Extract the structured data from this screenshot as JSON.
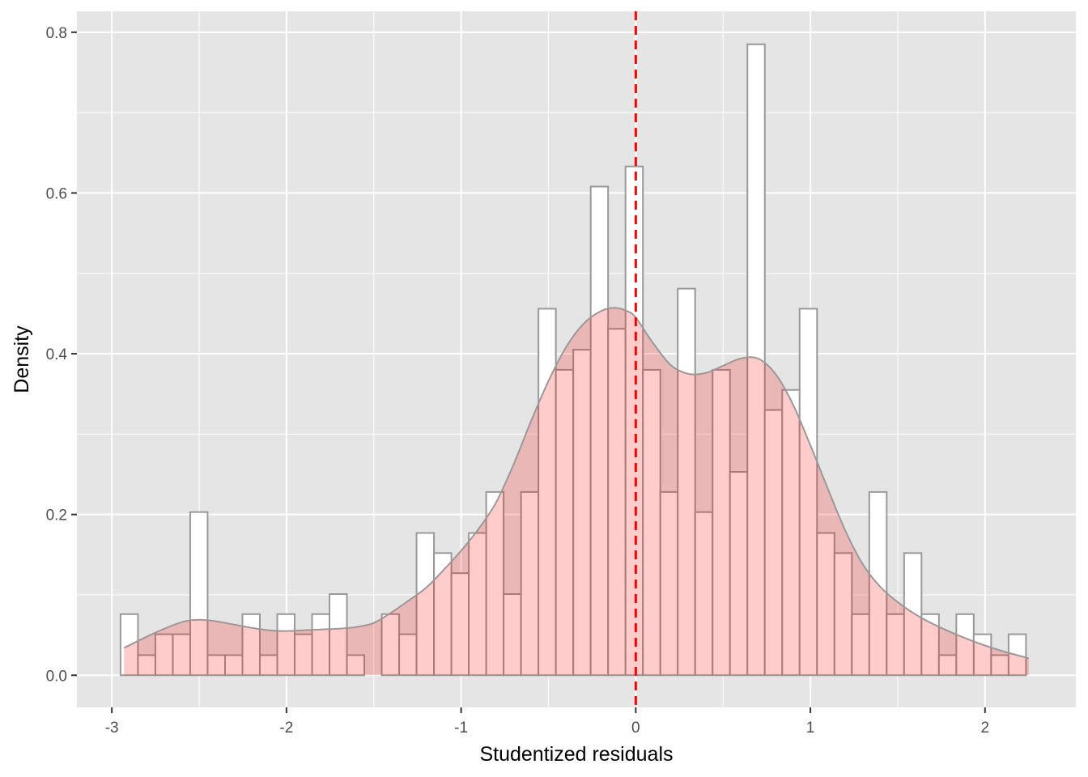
{
  "chart_data": {
    "type": "histogram",
    "title": "",
    "xlabel": "Studentized residuals",
    "ylabel": "Density",
    "xlim": [
      -3.2,
      2.52
    ],
    "ylim": [
      -0.04,
      0.826
    ],
    "x_ticks": [
      -3,
      -2,
      -1,
      0,
      1,
      2
    ],
    "y_ticks": [
      0.0,
      0.2,
      0.4,
      0.6,
      0.8
    ],
    "x_tick_labels": [
      "-3",
      "-2",
      "-1",
      "0",
      "1",
      "2"
    ],
    "y_tick_labels": [
      "0.0",
      "0.2",
      "0.4",
      "0.6",
      "0.8"
    ],
    "grid": true,
    "bin_start": -2.95,
    "bin_width": 0.0997,
    "histogram_density": [
      0.076,
      0.025,
      0.051,
      0.051,
      0.203,
      0.025,
      0.025,
      0.076,
      0.025,
      0.076,
      0.051,
      0.076,
      0.101,
      0.025,
      0.0,
      0.076,
      0.051,
      0.177,
      0.152,
      0.127,
      0.177,
      0.228,
      0.101,
      0.228,
      0.456,
      0.38,
      0.405,
      0.608,
      0.431,
      0.633,
      0.38,
      0.228,
      0.481,
      0.203,
      0.38,
      0.253,
      0.785,
      0.33,
      0.355,
      0.456,
      0.177,
      0.152,
      0.076,
      0.228,
      0.076,
      0.152,
      0.076,
      0.025,
      0.076,
      0.051,
      0.025,
      0.051
    ],
    "bar_fill": "#ffffff",
    "bar_outline": "#999999",
    "density_curve": {
      "x": [
        -2.93,
        -2.75,
        -2.6,
        -2.5,
        -2.4,
        -2.3,
        -2.2,
        -2.1,
        -2.0,
        -1.9,
        -1.8,
        -1.7,
        -1.6,
        -1.5,
        -1.4,
        -1.3,
        -1.2,
        -1.1,
        -1.0,
        -0.9,
        -0.8,
        -0.7,
        -0.6,
        -0.5,
        -0.4,
        -0.3,
        -0.2,
        -0.12,
        -0.05,
        0.0,
        0.1,
        0.2,
        0.3,
        0.4,
        0.5,
        0.6,
        0.7,
        0.8,
        0.9,
        1.0,
        1.1,
        1.2,
        1.3,
        1.4,
        1.5,
        1.6,
        1.7,
        1.8,
        1.9,
        2.0,
        2.1,
        2.25
      ],
      "y": [
        0.034,
        0.053,
        0.066,
        0.069,
        0.067,
        0.063,
        0.059,
        0.056,
        0.055,
        0.056,
        0.057,
        0.058,
        0.06,
        0.065,
        0.078,
        0.093,
        0.109,
        0.131,
        0.155,
        0.182,
        0.215,
        0.262,
        0.316,
        0.366,
        0.408,
        0.437,
        0.453,
        0.457,
        0.453,
        0.445,
        0.413,
        0.386,
        0.375,
        0.376,
        0.385,
        0.394,
        0.394,
        0.375,
        0.337,
        0.286,
        0.232,
        0.18,
        0.138,
        0.11,
        0.091,
        0.076,
        0.064,
        0.054,
        0.045,
        0.037,
        0.03,
        0.021
      ],
      "fill": "#ff0000",
      "fill_opacity": 0.2,
      "stroke": "#999999"
    },
    "reference_line": {
      "x": 0,
      "color": "#ff0000",
      "style": "dashed"
    },
    "panel_background": "#e5e5e5",
    "grid_color": "#ffffff"
  }
}
